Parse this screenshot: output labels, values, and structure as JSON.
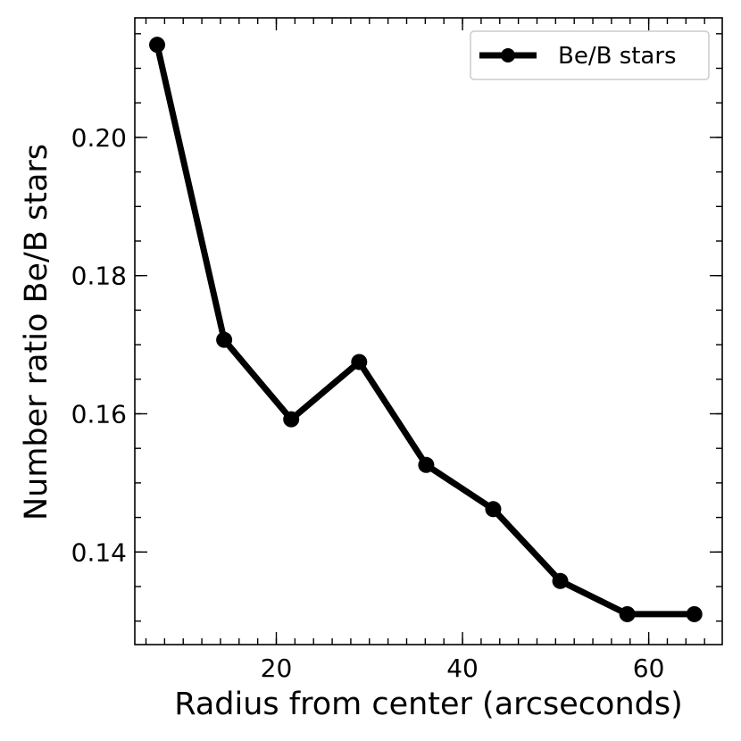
{
  "chart_data": {
    "type": "line",
    "xlabel": "Radius from center (arcseconds)",
    "ylabel": "Number ratio Be/B stars",
    "xlim": [
      4.8,
      67.9
    ],
    "ylim": [
      0.1266,
      0.2173
    ],
    "xticks": [
      20,
      40,
      60
    ],
    "yticks": [
      0.14,
      0.16,
      0.18,
      0.2
    ],
    "xtick_labels": [
      "20",
      "40",
      "60"
    ],
    "ytick_labels": [
      "0.14",
      "0.16",
      "0.18",
      "0.20"
    ],
    "x_minor_step": 2,
    "y_minor_step": 0.005,
    "legend_position": "top-right",
    "grid": false,
    "series": [
      {
        "name": "Be/B stars",
        "color": "#000000",
        "marker": "circle",
        "x": [
          7.2,
          14.4,
          21.6,
          28.9,
          36.1,
          43.3,
          50.5,
          57.7,
          64.9
        ],
        "y": [
          0.2134,
          0.1707,
          0.1592,
          0.1675,
          0.1526,
          0.1462,
          0.1358,
          0.131,
          0.131
        ]
      }
    ]
  }
}
